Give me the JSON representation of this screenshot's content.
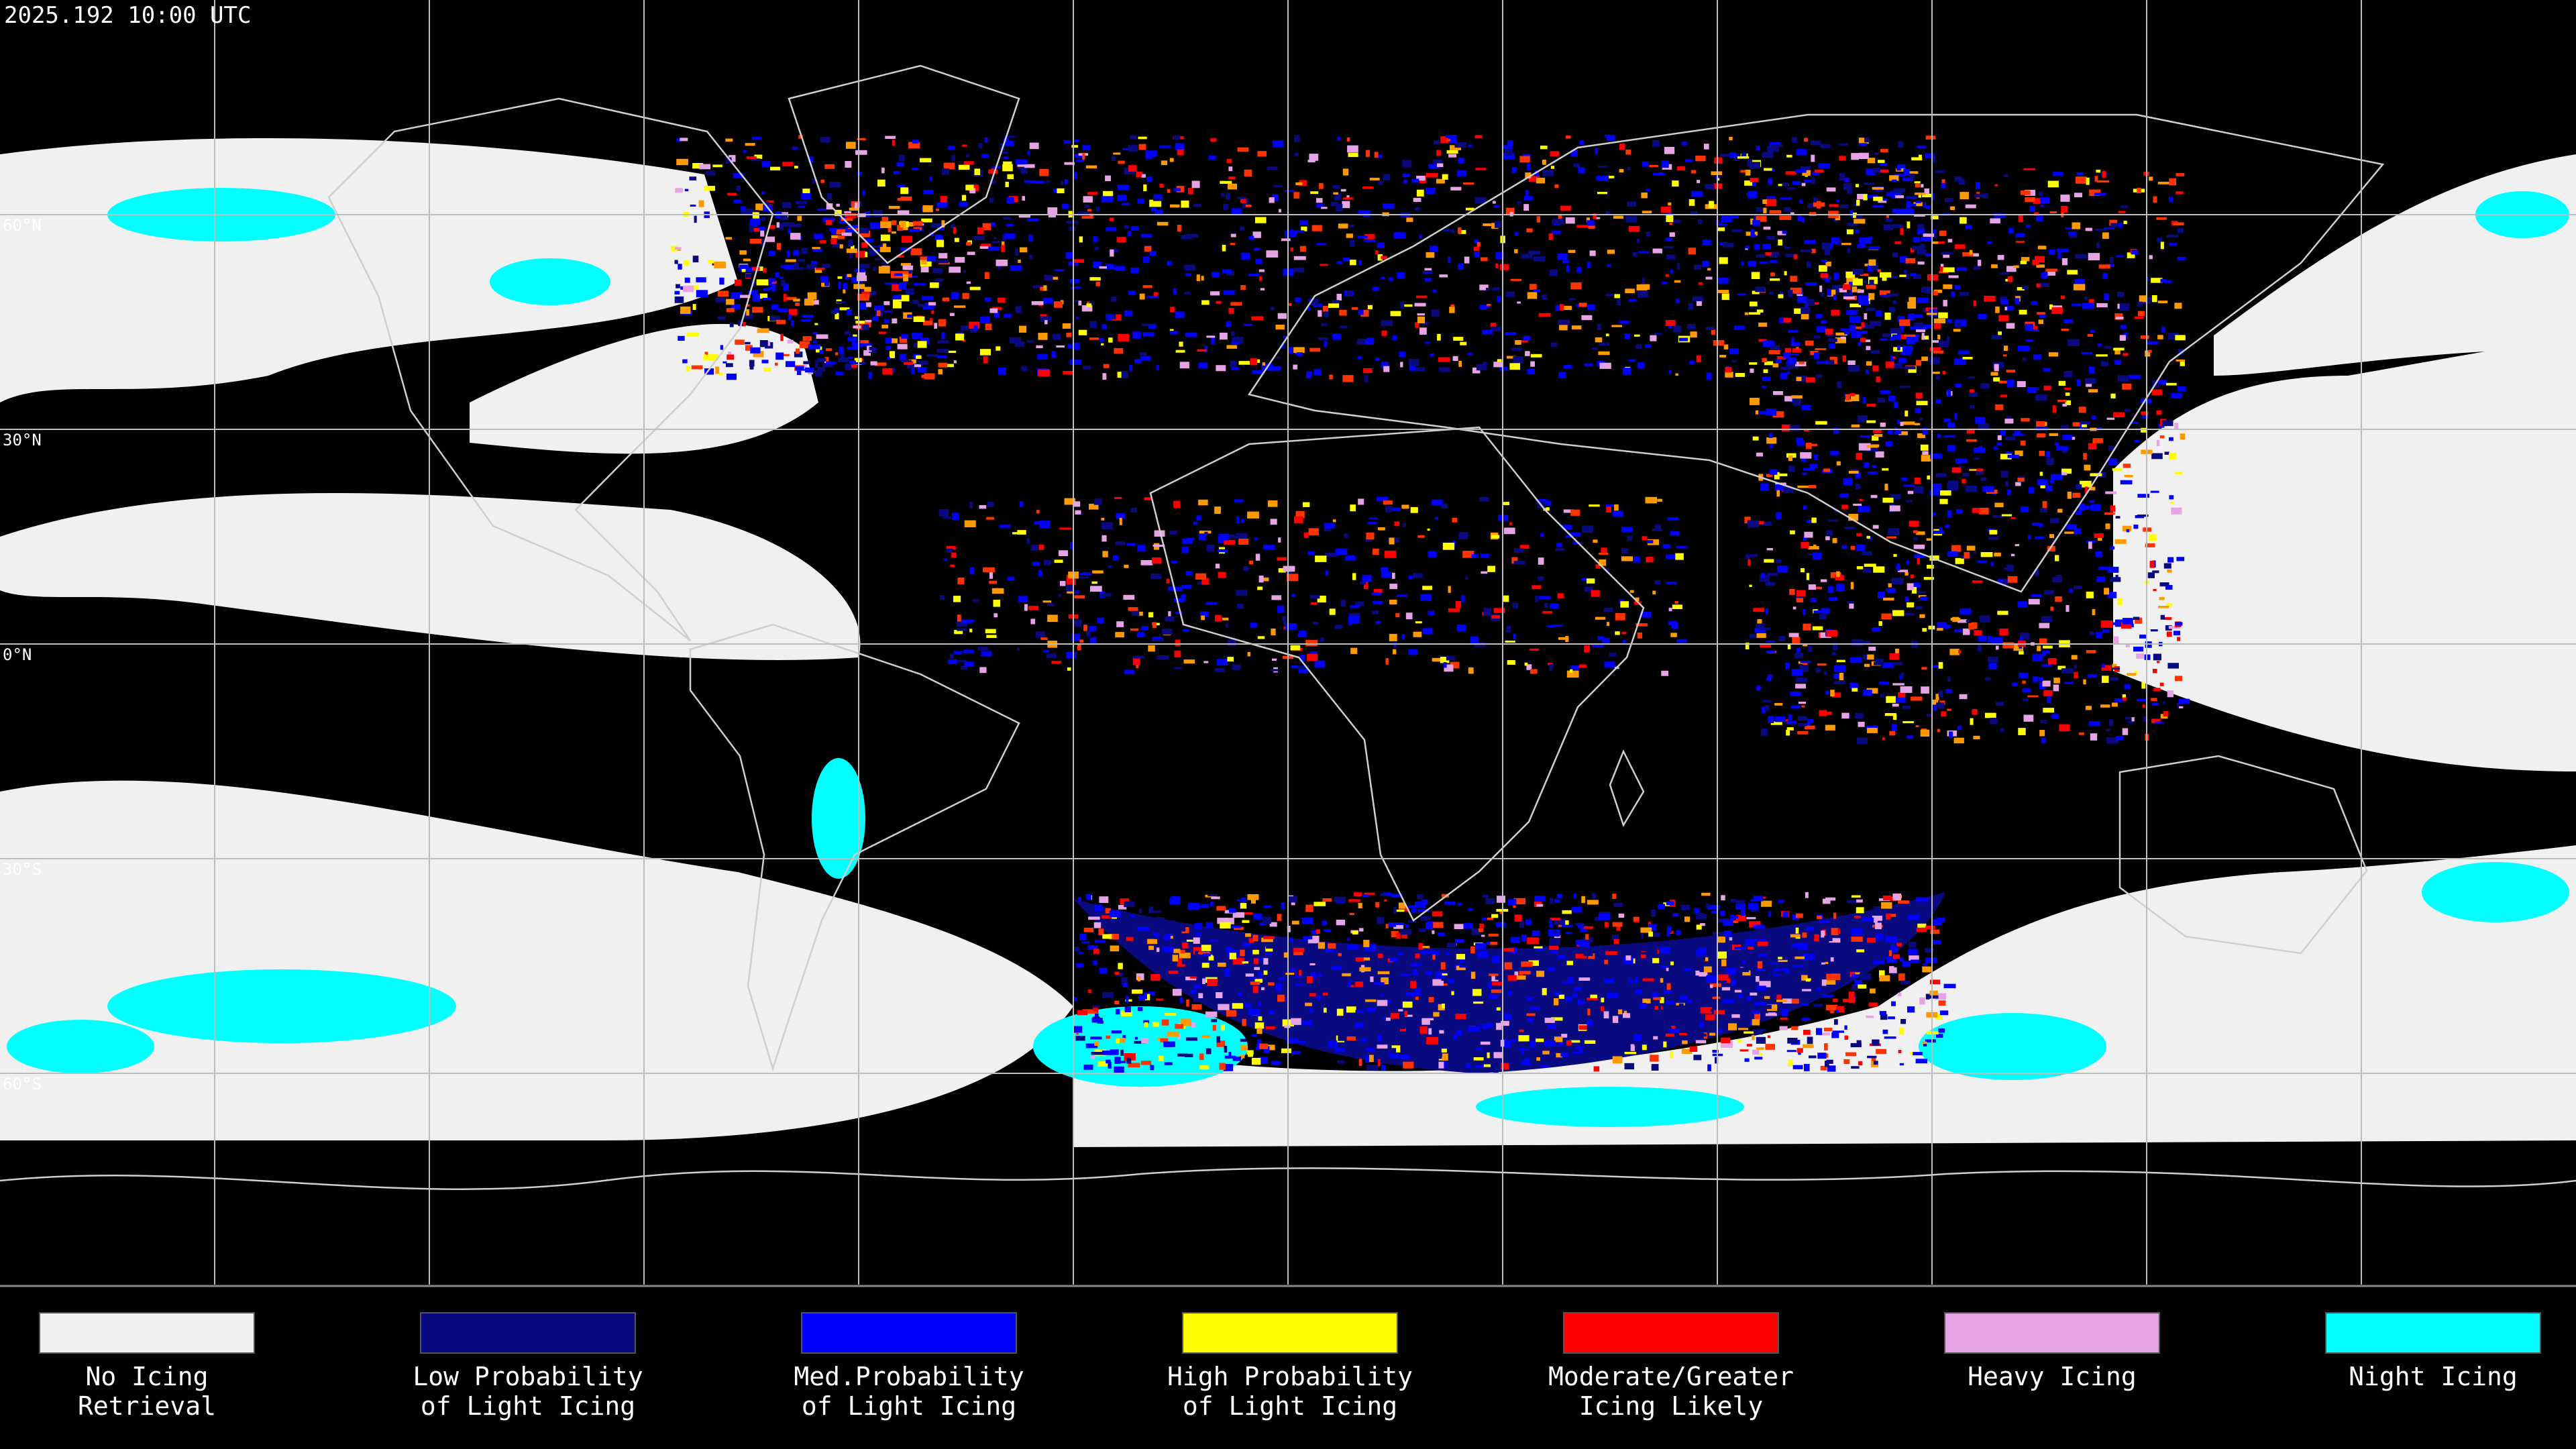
{
  "header": {
    "title": "2025.192 10:00 UTC"
  },
  "map": {
    "lat_labels": [
      "60°N",
      "30°N",
      "0°N",
      "30°S",
      "60°S"
    ]
  },
  "legend": {
    "items": [
      {
        "lines": [
          "No Icing",
          "Retrieval"
        ],
        "color": "#f0f0f0"
      },
      {
        "lines": [
          "Low Probability",
          "of Light Icing"
        ],
        "color": "#0a0a80"
      },
      {
        "lines": [
          "Med.Probability",
          "of Light Icing"
        ],
        "color": "#0000ff"
      },
      {
        "lines": [
          "High Probability",
          "of Light Icing"
        ],
        "color": "#ffff00"
      },
      {
        "lines": [
          "Moderate/Greater",
          "Icing Likely"
        ],
        "color": "#ff0000"
      },
      {
        "lines": [
          "Heavy Icing"
        ],
        "color": "#e6a3e6"
      },
      {
        "lines": [
          "Night Icing"
        ],
        "color": "#00ffff"
      }
    ]
  }
}
